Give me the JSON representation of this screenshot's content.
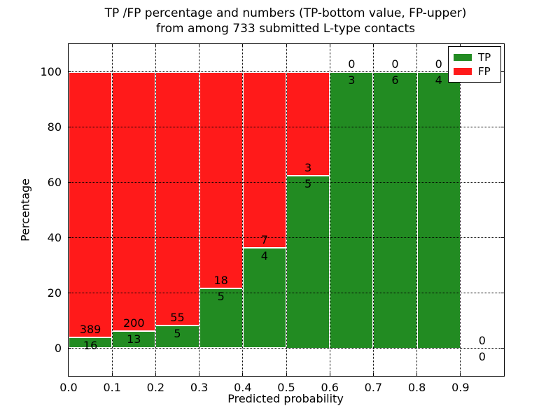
{
  "figure": {
    "title_line1": "TP /FP percentage and numbers (TP-bottom value, FP-upper)",
    "title_line2": "from among 733 submitted L-type contacts",
    "xlabel": "Predicted probability",
    "ylabel": "Percentage"
  },
  "legend": {
    "position": "upper right",
    "items": [
      {
        "label": "TP",
        "color": "#228b22"
      },
      {
        "label": "FP",
        "color": "#ff1a1a"
      }
    ]
  },
  "chart_data": {
    "type": "bar",
    "subtype": "stacked-percentage-histogram",
    "title": "TP /FP percentage and numbers (TP-bottom value, FP-upper) from among 733 submitted L-type contacts",
    "xlabel": "Predicted probability",
    "ylabel": "Percentage",
    "total_contacts": 733,
    "bin_width": 0.1,
    "bin_starts": [
      0.0,
      0.1,
      0.2,
      0.3,
      0.4,
      0.5,
      0.6,
      0.7,
      0.8,
      0.9
    ],
    "series": [
      {
        "name": "TP",
        "position": "bottom",
        "color": "#228b22",
        "counts": [
          16,
          13,
          5,
          5,
          4,
          5,
          3,
          6,
          4,
          0
        ]
      },
      {
        "name": "FP",
        "position": "top",
        "color": "#ff1a1a",
        "counts": [
          389,
          200,
          55,
          18,
          7,
          3,
          0,
          0,
          0,
          0
        ]
      }
    ],
    "tp_percent_heights": [
      3.95,
      6.1,
      8.33,
      21.74,
      36.36,
      62.5,
      100,
      100,
      100,
      0
    ],
    "xticks": [
      "0.0",
      "0.1",
      "0.2",
      "0.3",
      "0.4",
      "0.5",
      "0.6",
      "0.7",
      "0.8",
      "0.9"
    ],
    "yticks": [
      0,
      20,
      40,
      60,
      80,
      100
    ],
    "xlim": [
      0.0,
      1.0
    ],
    "ylim": [
      -10,
      110
    ],
    "grid": "dotted, both axes",
    "legend_position": "upper right"
  }
}
